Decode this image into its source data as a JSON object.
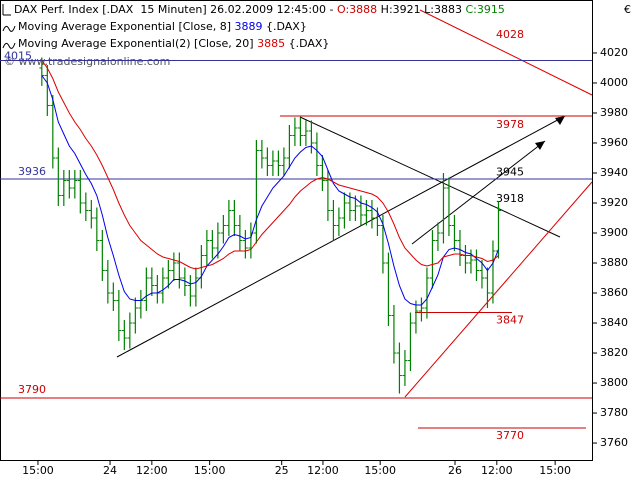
{
  "chart_data": {
    "type": "ohlc",
    "title": [
      {
        "text": "DAX Perf. Index [.DAX  15 Minuten] 26.02.2009 12:45:00 - ",
        "color": "#000000"
      },
      {
        "text": "O:3888",
        "color": "#cc0000"
      },
      {
        "text": " H:3921 L:3883 ",
        "color": "#000000"
      },
      {
        "text": "C:3915",
        "color": "#008000"
      }
    ],
    "currency": "€",
    "watermark": "© www.tradesignalonline.com",
    "xlim": [
      -7.6,
      100
    ],
    "xticks": [
      {
        "value": -0.7,
        "label": "15:00"
      },
      {
        "value": 12.4,
        "label": "24"
      },
      {
        "value": 20,
        "label": "12:00"
      },
      {
        "value": 30.5,
        "label": "15:00"
      },
      {
        "value": 43.6,
        "label": "25"
      },
      {
        "value": 51.1,
        "label": "12:00"
      },
      {
        "value": 61.5,
        "label": "15:00"
      },
      {
        "value": 75.1,
        "label": "26"
      },
      {
        "value": 82.7,
        "label": "12:00"
      },
      {
        "value": 93.3,
        "label": "15:00"
      }
    ],
    "ylim": [
      3748.7,
      4055.3
    ],
    "yticks": [
      3760,
      3780,
      3800,
      3820,
      3840,
      3860,
      3880,
      3900,
      3920,
      3940,
      3960,
      3980,
      4000,
      4020
    ],
    "ohlc": {
      "color": "#008000",
      "open": [
        4010,
        4005,
        3985,
        3950,
        3925,
        3935,
        3930,
        3935,
        3920,
        3915,
        3910,
        3895,
        3875,
        3860,
        3855,
        3835,
        3830,
        3840,
        3850,
        3855,
        3870,
        3865,
        3860,
        3870,
        3875,
        3880,
        3870,
        3865,
        3858,
        3870,
        3885,
        3895,
        3890,
        3900,
        3905,
        3915,
        3905,
        3895,
        3890,
        3900,
        3955,
        3950,
        3945,
        3948,
        3945,
        3950,
        3965,
        3970,
        3965,
        3968,
        3960,
        3945,
        3935,
        3915,
        3905,
        3910,
        3920,
        3915,
        3918,
        3912,
        3915,
        3910,
        3905,
        3880,
        3845,
        3820,
        3805,
        3815,
        3840,
        3848,
        3850,
        3870,
        3895,
        3900,
        3930,
        3905,
        3895,
        3885,
        3880,
        3882,
        3875,
        3870,
        3860,
        3888
      ],
      "high": [
        4017,
        4012,
        3992,
        3957,
        3942,
        3942,
        3942,
        3942,
        3927,
        3922,
        3917,
        3902,
        3882,
        3867,
        3862,
        3842,
        3847,
        3857,
        3862,
        3877,
        3877,
        3872,
        3877,
        3882,
        3887,
        3887,
        3877,
        3872,
        3877,
        3892,
        3902,
        3902,
        3907,
        3912,
        3922,
        3922,
        3912,
        3902,
        3907,
        3962,
        3962,
        3957,
        3955,
        3955,
        3957,
        3972,
        3977,
        3977,
        3975,
        3975,
        3967,
        3952,
        3942,
        3922,
        3917,
        3927,
        3927,
        3925,
        3925,
        3922,
        3922,
        3917,
        3912,
        3887,
        3852,
        3827,
        3822,
        3847,
        3855,
        3857,
        3877,
        3902,
        3907,
        3940,
        3937,
        3912,
        3902,
        3892,
        3889,
        3889,
        3882,
        3877,
        3895,
        3921
      ],
      "low": [
        3998,
        3978,
        3943,
        3918,
        3918,
        3923,
        3923,
        3913,
        3908,
        3903,
        3888,
        3868,
        3853,
        3848,
        3828,
        3822,
        3823,
        3833,
        3843,
        3848,
        3858,
        3853,
        3853,
        3863,
        3868,
        3863,
        3858,
        3851,
        3851,
        3863,
        3878,
        3883,
        3883,
        3893,
        3898,
        3898,
        3888,
        3883,
        3883,
        3893,
        3943,
        3938,
        3938,
        3938,
        3938,
        3943,
        3958,
        3958,
        3958,
        3953,
        3938,
        3928,
        3908,
        3895,
        3898,
        3903,
        3908,
        3908,
        3905,
        3905,
        3903,
        3898,
        3873,
        3838,
        3813,
        3793,
        3798,
        3808,
        3833,
        3841,
        3843,
        3863,
        3888,
        3893,
        3898,
        3888,
        3878,
        3873,
        3873,
        3868,
        3863,
        3850,
        3853,
        3883
      ],
      "close": [
        4005,
        3985,
        3950,
        3925,
        3935,
        3930,
        3935,
        3920,
        3915,
        3910,
        3895,
        3875,
        3860,
        3855,
        3835,
        3830,
        3840,
        3850,
        3855,
        3870,
        3865,
        3860,
        3870,
        3875,
        3880,
        3870,
        3865,
        3858,
        3870,
        3885,
        3895,
        3890,
        3900,
        3905,
        3915,
        3905,
        3895,
        3890,
        3900,
        3955,
        3950,
        3945,
        3948,
        3945,
        3950,
        3965,
        3970,
        3965,
        3968,
        3960,
        3945,
        3935,
        3915,
        3905,
        3910,
        3920,
        3915,
        3918,
        3912,
        3915,
        3910,
        3905,
        3880,
        3845,
        3820,
        3805,
        3815,
        3840,
        3848,
        3850,
        3870,
        3895,
        3900,
        3930,
        3905,
        3895,
        3885,
        3880,
        3882,
        3875,
        3870,
        3860,
        3888,
        3915
      ]
    },
    "series": [
      {
        "name": "Moving Average Exponential [Close, 8]",
        "last": 3889,
        "unit": "{.DAX}",
        "color": "#0000ee",
        "values": [
          4005,
          4000,
          3989,
          3974,
          3966,
          3958,
          3953,
          3946,
          3939,
          3933,
          3925,
          3912,
          3897,
          3885,
          3872,
          3861,
          3856,
          3855,
          3855,
          3858,
          3860,
          3860,
          3862,
          3865,
          3869,
          3869,
          3868,
          3866,
          3867,
          3871,
          3878,
          3882,
          3886,
          3891,
          3897,
          3899,
          3898,
          3896,
          3897,
          3909,
          3918,
          3924,
          3930,
          3934,
          3938,
          3944,
          3950,
          3954,
          3957,
          3958,
          3955,
          3951,
          3942,
          3933,
          3928,
          3926,
          3924,
          3923,
          3920,
          3919,
          3917,
          3914,
          3906,
          3893,
          3878,
          3865,
          3856,
          3853,
          3852,
          3852,
          3856,
          3864,
          3872,
          3884,
          3889,
          3890,
          3889,
          3887,
          3886,
          3883,
          3880,
          3875,
          3880,
          3889
        ]
      },
      {
        "name": "Moving Average Exponential(2) [Close, 20]",
        "last": 3885,
        "unit": "{.DAX}",
        "color": "#dd0000",
        "values": [
          4015,
          4010,
          4003,
          3994,
          3987,
          3980,
          3974,
          3969,
          3963,
          3958,
          3952,
          3945,
          3937,
          3929,
          3920,
          3912,
          3905,
          3900,
          3895,
          3892,
          3889,
          3886,
          3884,
          3883,
          3882,
          3881,
          3879,
          3877,
          3876,
          3877,
          3878,
          3879,
          3881,
          3883,
          3886,
          3888,
          3888,
          3888,
          3889,
          3894,
          3899,
          3903,
          3907,
          3911,
          3915,
          3919,
          3924,
          3928,
          3931,
          3934,
          3936,
          3937,
          3936,
          3934,
          3932,
          3931,
          3930,
          3929,
          3928,
          3927,
          3926,
          3924,
          3920,
          3914,
          3906,
          3897,
          3890,
          3886,
          3882,
          3879,
          3878,
          3879,
          3880,
          3884,
          3885,
          3886,
          3886,
          3885,
          3885,
          3884,
          3883,
          3881,
          3882,
          3885
        ]
      }
    ],
    "levels": [
      {
        "value": 4015,
        "color": "#333399"
      },
      {
        "value": 3936,
        "color": "#333399"
      },
      {
        "value": 3978,
        "color": "#cc0000"
      },
      {
        "value": 3790,
        "color": "#cc0000"
      },
      {
        "value": 3847,
        "color": "#cc0000"
      },
      {
        "value": 3770,
        "color": "#cc0000"
      }
    ],
    "annotations": [
      {
        "value": 4028,
        "color": "#cc0000"
      },
      {
        "value": 3945,
        "color": "#000000"
      },
      {
        "value": 3918,
        "color": "#000000"
      }
    ]
  }
}
